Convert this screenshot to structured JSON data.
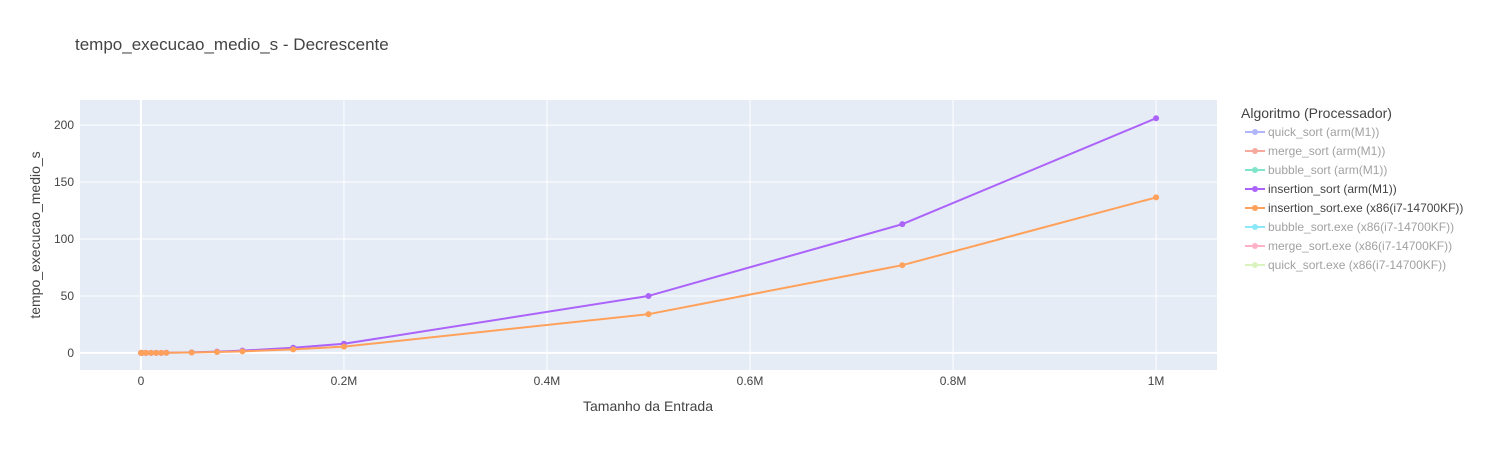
{
  "chart_data": {
    "type": "line",
    "title": "tempo_execucao_medio_s - Decrescente",
    "xlabel": "Tamanho da Entrada",
    "ylabel": "tempo_execucao_medio_s",
    "xlim": [
      -60000,
      1060000
    ],
    "ylim": [
      -15,
      222
    ],
    "x_ticks": [
      {
        "value": 0,
        "label": "0"
      },
      {
        "value": 200000,
        "label": "0.2M"
      },
      {
        "value": 400000,
        "label": "0.4M"
      },
      {
        "value": 600000,
        "label": "0.6M"
      },
      {
        "value": 800000,
        "label": "0.8M"
      },
      {
        "value": 1000000,
        "label": "1M"
      }
    ],
    "y_ticks": [
      {
        "value": 0,
        "label": "0"
      },
      {
        "value": 50,
        "label": "50"
      },
      {
        "value": 100,
        "label": "100"
      },
      {
        "value": 150,
        "label": "150"
      },
      {
        "value": 200,
        "label": "200"
      }
    ],
    "grid": true,
    "legend": {
      "title": "Algoritmo (Processador)",
      "position": "right"
    },
    "series": [
      {
        "name": "quick_sort (arm(M1))",
        "color": "#636efa",
        "visible": false,
        "x": [],
        "y": []
      },
      {
        "name": "merge_sort (arm(M1))",
        "color": "#EF553B",
        "visible": false,
        "x": [],
        "y": []
      },
      {
        "name": "bubble_sort (arm(M1))",
        "color": "#00cc96",
        "visible": false,
        "x": [],
        "y": []
      },
      {
        "name": "insertion_sort (arm(M1))",
        "color": "#ab63fa",
        "visible": true,
        "x": [
          100,
          1000,
          5000,
          10000,
          15000,
          20000,
          25000,
          50000,
          75000,
          100000,
          150000,
          200000,
          500000,
          750000,
          1000000
        ],
        "y": [
          0,
          0,
          0.01,
          0.02,
          0.05,
          0.08,
          0.13,
          0.5,
          1.1,
          2.0,
          4.5,
          8.0,
          50.0,
          113.0,
          206.0
        ]
      },
      {
        "name": "insertion_sort.exe (x86(i7-14700KF))",
        "color": "#FFA15A",
        "visible": true,
        "x": [
          100,
          1000,
          5000,
          10000,
          15000,
          20000,
          25000,
          50000,
          75000,
          100000,
          150000,
          200000,
          500000,
          750000,
          1000000
        ],
        "y": [
          0,
          0,
          0.01,
          0.01,
          0.03,
          0.05,
          0.09,
          0.35,
          0.75,
          1.4,
          3.1,
          5.5,
          34.0,
          77.0,
          136.5
        ]
      },
      {
        "name": "bubble_sort.exe (x86(i7-14700KF))",
        "color": "#19d3f3",
        "visible": false,
        "x": [],
        "y": []
      },
      {
        "name": "merge_sort.exe (x86(i7-14700KF))",
        "color": "#FF6692",
        "visible": false,
        "x": [],
        "y": []
      },
      {
        "name": "quick_sort.exe (x86(i7-14700KF))",
        "color": "#B6E880",
        "visible": false,
        "x": [],
        "y": []
      }
    ]
  }
}
